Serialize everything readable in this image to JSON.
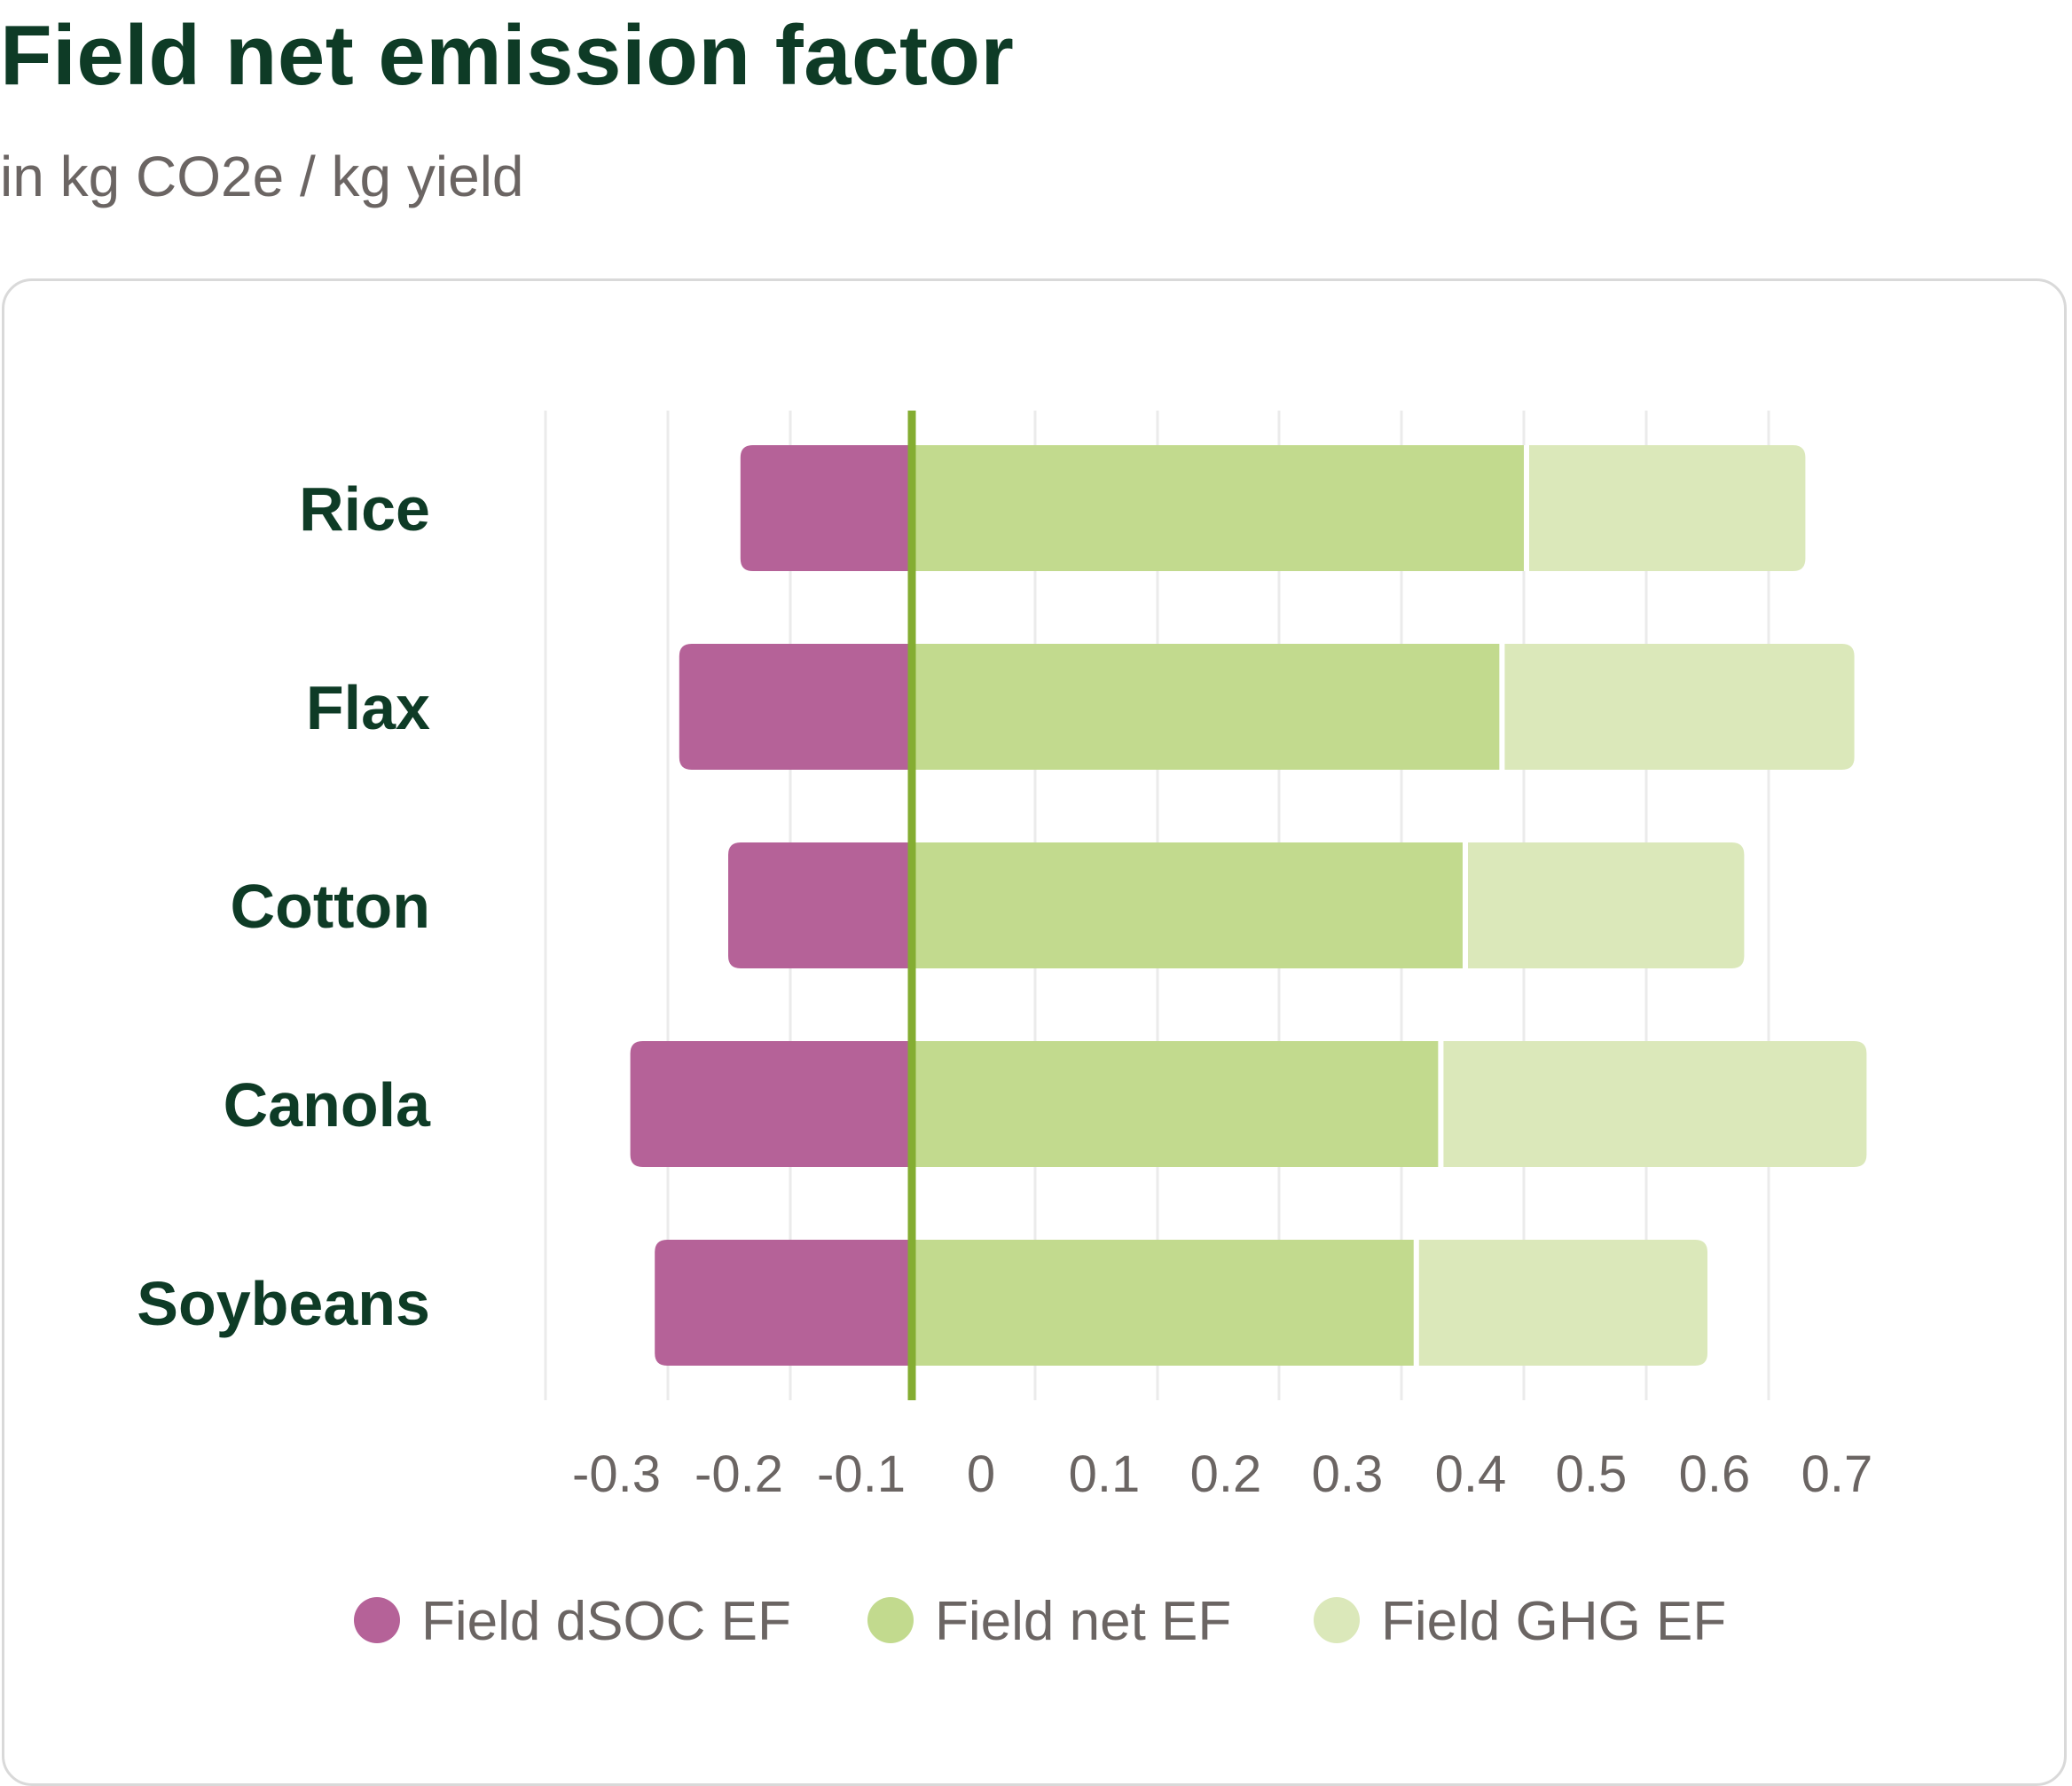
{
  "header": {
    "title": "Field net emission factor",
    "subtitle": "in kg CO2e / kg yield"
  },
  "colors": {
    "dsoc": "#b56298",
    "net": "#c2da8e",
    "ghg": "#dbe8ba",
    "zero_line": "#84ad32",
    "grid": "#ebebeb",
    "title": "#0e3b26",
    "muted_text": "#6b6563"
  },
  "chart_data": {
    "type": "bar",
    "orientation": "horizontal",
    "title": "Field net emission factor",
    "subtitle": "in kg CO2e / kg yield",
    "categories": [
      "Rice",
      "Flax",
      "Cotton",
      "Canola",
      "Soybeans"
    ],
    "series": [
      {
        "name": "Field dSOC EF",
        "key": "dsoc",
        "values": [
          -0.14,
          -0.19,
          -0.15,
          -0.23,
          -0.21
        ]
      },
      {
        "name": "Field net EF",
        "key": "net",
        "values": [
          0.5,
          0.48,
          0.45,
          0.43,
          0.41
        ]
      },
      {
        "name": "Field GHG EF",
        "key": "ghg",
        "values": [
          0.73,
          0.77,
          0.68,
          0.78,
          0.65
        ]
      }
    ],
    "xticks": [
      "-0.3",
      "-0.2",
      "-0.1",
      "0",
      "0.1",
      "0.2",
      "0.3",
      "0.4",
      "0.5",
      "0.6",
      "0.7"
    ],
    "xlim": [
      -0.3,
      0.8
    ],
    "grid": true,
    "legend_position": "bottom"
  }
}
